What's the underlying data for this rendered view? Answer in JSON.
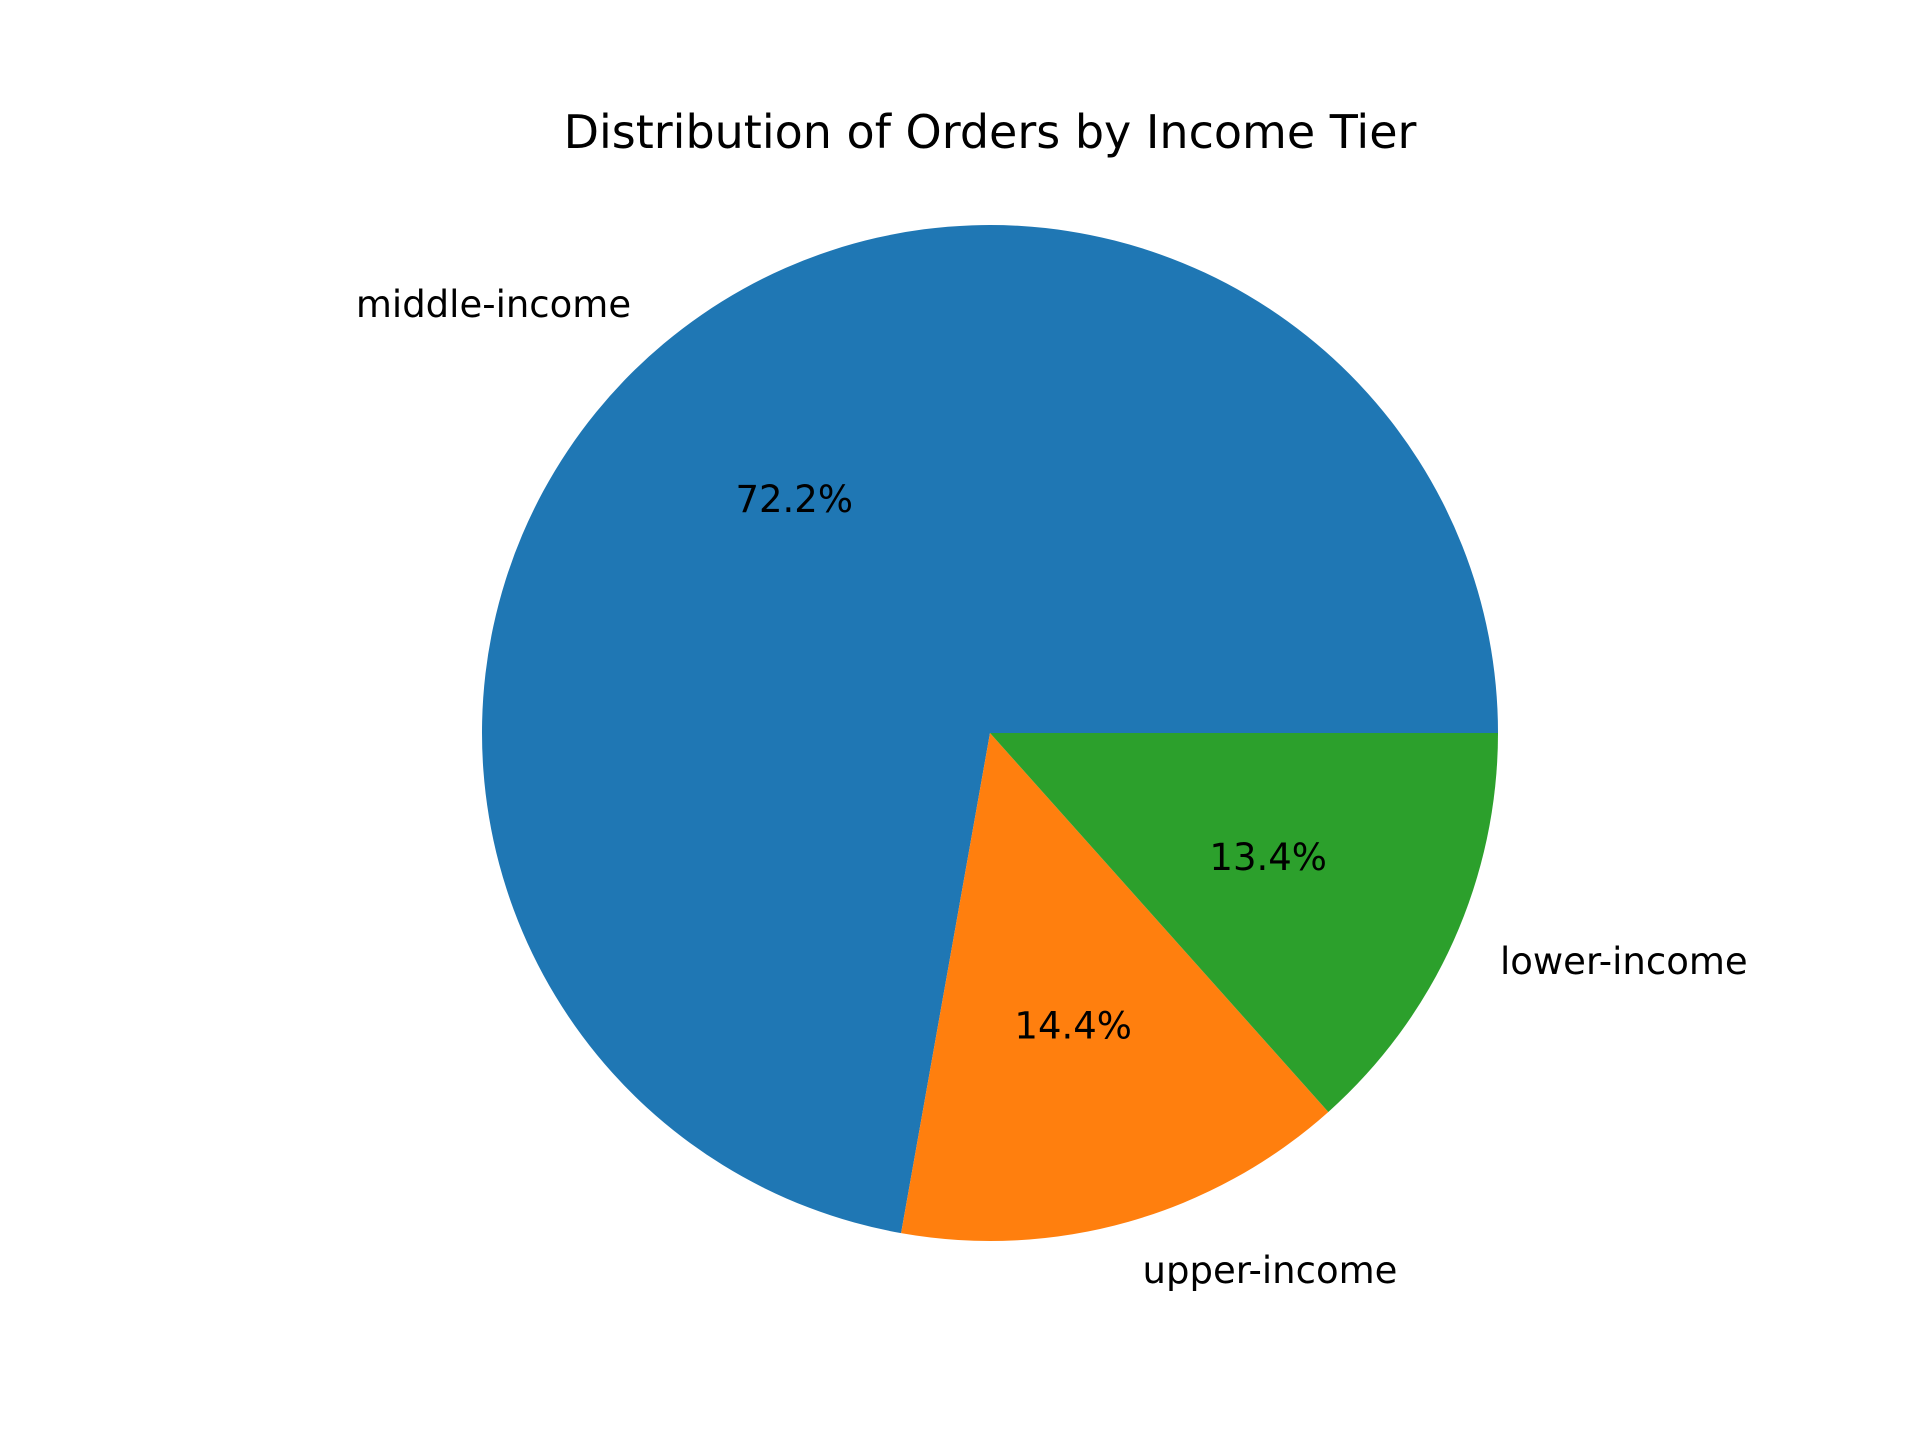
{
  "chart_data": {
    "type": "pie",
    "title": "Distribution of Orders by Income Tier",
    "slices": [
      {
        "label": "middle-income",
        "value": 72.2,
        "pct_label": "72.2%",
        "color": "#1f77b4"
      },
      {
        "label": "upper-income",
        "value": 14.4,
        "pct_label": "14.4%",
        "color": "#ff7f0e"
      },
      {
        "label": "lower-income",
        "value": 13.4,
        "pct_label": "13.4%",
        "color": "#2ca02c"
      }
    ],
    "start_angle_deg": 0,
    "direction": "counterclockwise",
    "legend": "none"
  }
}
